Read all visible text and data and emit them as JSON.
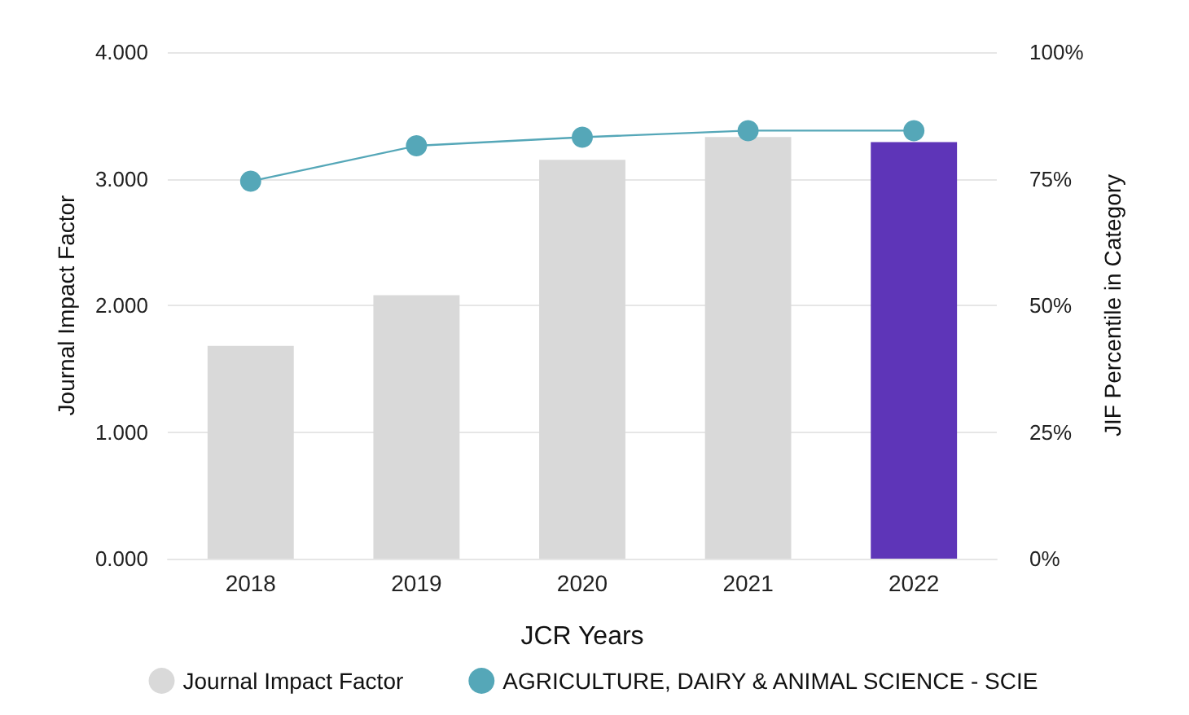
{
  "chart_data": {
    "type": "bar",
    "xlabel": "JCR Years",
    "ylabel": "Journal Impact Factor",
    "y2label": "JIF Percentile in Category",
    "categories": [
      "2018",
      "2019",
      "2020",
      "2021",
      "2022"
    ],
    "series": [
      {
        "name": "Journal Impact Factor",
        "color": "#d9d9d9",
        "colors": [
          "#d9d9d9",
          "#d9d9d9",
          "#d9d9d9",
          "#d9d9d9",
          "#5e35b8"
        ],
        "values": [
          1.68,
          2.08,
          3.15,
          3.33,
          3.29
        ]
      },
      {
        "name": "AGRICULTURE, DAIRY & ANIMAL SCIENCE - SCIE",
        "type": "line",
        "axis": "y2",
        "color": "#55a7b8",
        "values": [
          74.5,
          81.5,
          83.2,
          84.5,
          84.5
        ]
      }
    ],
    "ylim": [
      0,
      4
    ],
    "yticks": [
      {
        "value": 0,
        "label": "0.000"
      },
      {
        "value": 1,
        "label": "1.000"
      },
      {
        "value": 2,
        "label": "2.000"
      },
      {
        "value": 3,
        "label": "3.000"
      },
      {
        "value": 4,
        "label": "4.000"
      }
    ],
    "y2lim": [
      0,
      100
    ],
    "y2ticks": [
      {
        "value": 0,
        "label": "0%"
      },
      {
        "value": 25,
        "label": "25%"
      },
      {
        "value": 50,
        "label": "50%"
      },
      {
        "value": 75,
        "label": "75%"
      },
      {
        "value": 100,
        "label": "100%"
      }
    ],
    "grid": "y",
    "legend": "bottom",
    "marker": "circle",
    "line_style": "solid"
  }
}
